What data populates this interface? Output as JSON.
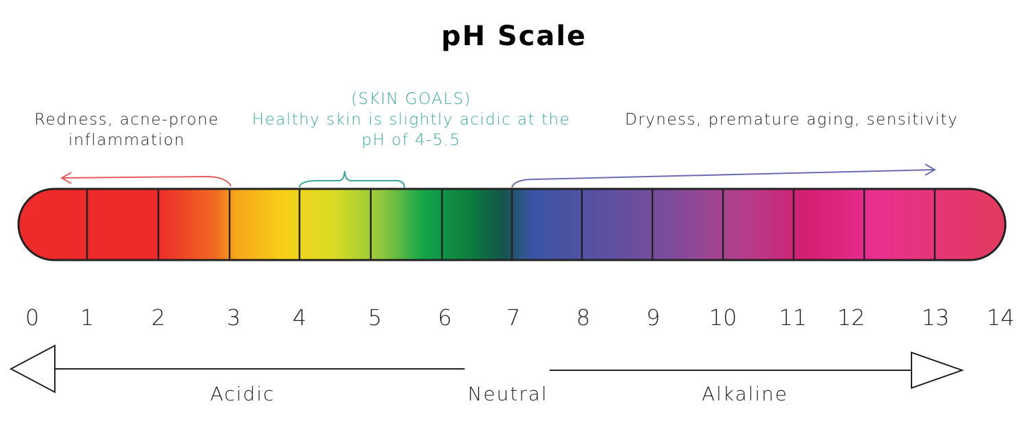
{
  "title": "pH Scale",
  "captions": {
    "left": [
      "Redness, acne-prone",
      "inflammation"
    ],
    "middle": [
      "(SKIN GOALS)",
      "Healthy skin is slightly acidic at the",
      "pH of 4-5.5"
    ],
    "right": [
      "Dryness, premature aging, sensitivity"
    ]
  },
  "scale": {
    "tick_labels": [
      "0",
      "1",
      "2",
      "3",
      "4",
      "5",
      "6",
      "7",
      "8",
      "9",
      "10",
      "11",
      "12",
      "13",
      "14"
    ],
    "segment_colors": [
      "#ee2a2a",
      "#ee2a2a",
      "#f47b20",
      "#f7d117",
      "#a8d63a",
      "#13a54a",
      "#0d6a3a",
      "#3a55a5",
      "#5a50a0",
      "#7a4c9c",
      "#b2408c",
      "#d51e72",
      "#e8308e",
      "#e23b77"
    ]
  },
  "directions": {
    "acidic": "Acidic",
    "neutral": "Neutral",
    "alkaline": "Alkaline"
  },
  "colors": {
    "acid_arrow": "#e85a5a",
    "goal_bracket": "#3aa6a0",
    "alkaline_arrow": "#6a6ab0"
  }
}
